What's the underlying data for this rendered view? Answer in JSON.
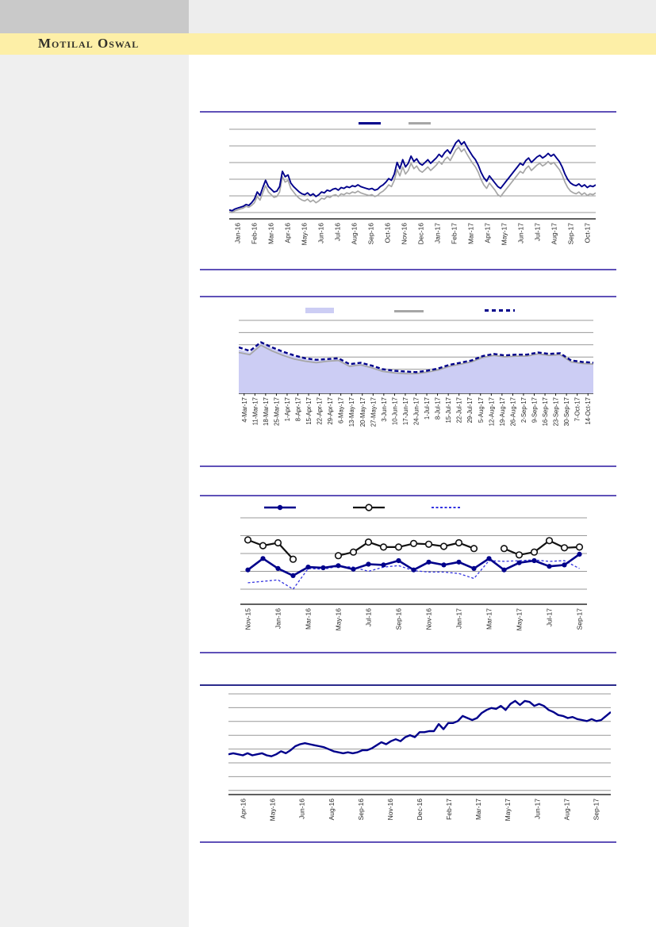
{
  "page": {
    "brand": "Motilal Oswal"
  },
  "colors": {
    "navy": "#00008b",
    "gray_line": "#a6a6a6",
    "lavender": "#cccdf4",
    "bright_blue_dash": "#3333e0",
    "black_line": "#111111",
    "rule_purple": "#5f51b8",
    "rule_navy": "#2b2b8c",
    "band_yellow": "#fdefa7",
    "topbar_gray": "#c9c9c9",
    "topbar_light": "#ededed",
    "sidebar_gray": "#efefef",
    "gridline": "#999999",
    "axis_black": "#000000",
    "tick_text": "#262626",
    "brand_text": "#32312b"
  },
  "chart_data": [
    {
      "id": "chart1-two-line-trend",
      "type": "line",
      "title": "",
      "xlabel": "",
      "ylabel": "",
      "y_axis": "unlabeled (values estimated on relative 0-100 scale of plot height)",
      "ylim": [
        0,
        100
      ],
      "grid": "horizontal",
      "legend_position": "top (two unlabeled swatches: navy line, gray line)",
      "x_labels": [
        "Jan-16",
        "Feb-16",
        "Mar-16",
        "Apr-16",
        "May-16",
        "Jun-16",
        "Jul-16",
        "Aug-16",
        "Sep-16",
        "Oct-16",
        "Nov-16",
        "Dec-16",
        "Jan-17",
        "Feb-17",
        "Mar-17",
        "Apr-17",
        "May-17",
        "Jun-17",
        "Jul-17",
        "Aug-17",
        "Sep-17",
        "Oct-17"
      ],
      "series": [
        {
          "name": "navy-line",
          "values": [
            10,
            9,
            11,
            12,
            13,
            14,
            16,
            15,
            18,
            22,
            30,
            26,
            35,
            43,
            36,
            33,
            30,
            31,
            36,
            53,
            47,
            49,
            40,
            36,
            33,
            30,
            28,
            27,
            29,
            26,
            28,
            25,
            27,
            30,
            29,
            32,
            31,
            33,
            34,
            32,
            35,
            34,
            36,
            35,
            37,
            36,
            38,
            36,
            35,
            34,
            33,
            34,
            32,
            33,
            36,
            38,
            41,
            45,
            43,
            50,
            63,
            56,
            66,
            58,
            62,
            70,
            64,
            67,
            62,
            60,
            63,
            66,
            62,
            65,
            68,
            72,
            69,
            74,
            77,
            73,
            79,
            85,
            88,
            83,
            86,
            80,
            75,
            70,
            66,
            60,
            52,
            46,
            42,
            48,
            44,
            40,
            36,
            34,
            38,
            42,
            46,
            50,
            54,
            58,
            62,
            60,
            65,
            68,
            63,
            66,
            69,
            71,
            68,
            70,
            73,
            70,
            72,
            68,
            64,
            58,
            50,
            44,
            40,
            38,
            37,
            39,
            36,
            38,
            35,
            37,
            36,
            38
          ]
        },
        {
          "name": "gray-line",
          "values": [
            8,
            7,
            9,
            10,
            11,
            12,
            14,
            13,
            15,
            18,
            25,
            21,
            29,
            37,
            30,
            27,
            24,
            25,
            30,
            47,
            41,
            43,
            34,
            30,
            26,
            23,
            21,
            20,
            22,
            19,
            21,
            18,
            20,
            23,
            22,
            25,
            24,
            26,
            27,
            25,
            28,
            27,
            29,
            28,
            30,
            29,
            31,
            29,
            28,
            27,
            26,
            27,
            25,
            26,
            29,
            31,
            34,
            38,
            36,
            43,
            55,
            48,
            58,
            50,
            54,
            62,
            56,
            59,
            54,
            52,
            55,
            58,
            54,
            57,
            60,
            64,
            61,
            66,
            69,
            65,
            71,
            77,
            80,
            75,
            78,
            72,
            67,
            62,
            58,
            52,
            44,
            38,
            34,
            40,
            36,
            32,
            27,
            25,
            29,
            33,
            37,
            41,
            45,
            49,
            53,
            51,
            56,
            59,
            54,
            57,
            60,
            62,
            59,
            61,
            64,
            61,
            63,
            59,
            55,
            49,
            41,
            35,
            31,
            29,
            28,
            30,
            27,
            29,
            26,
            28,
            27,
            29
          ]
        }
      ]
    },
    {
      "id": "chart2-weekly-area",
      "type": "area",
      "title": "",
      "xlabel": "",
      "ylabel": "",
      "y_axis": "unlabeled (values estimated on relative 0-100 scale of plot height)",
      "ylim": [
        0,
        100
      ],
      "grid": "horizontal",
      "legend_position": "top (three unlabeled swatches: lavender area, gray line, navy dashed line)",
      "x_labels": [
        "4-Mar-17",
        "11-Mar-17",
        "18-Mar-17",
        "25-Mar-17",
        "1-Apr-17",
        "8-Apr-17",
        "15-Apr-17",
        "22-Apr-17",
        "29-Apr-17",
        "6-May-17",
        "13-May-17",
        "20-May-17",
        "27-May-17",
        "3-Jun-17",
        "10-Jun-17",
        "17-Jun-17",
        "24-Jun-17",
        "1-Jul-17",
        "8-Jul-17",
        "15-Jul-17",
        "22-Jul-17",
        "29-Jul-17",
        "5-Aug-17",
        "12-Aug-17",
        "19-Aug-17",
        "26-Aug-17",
        "2-Sep-17",
        "9-Sep-17",
        "16-Sep-17",
        "23-Sep-17",
        "30-Sep-17",
        "7-Oct-17",
        "14-Oct-17"
      ],
      "series": [
        {
          "name": "lavender-area",
          "values": [
            60,
            56,
            69,
            62,
            56,
            51,
            47,
            45,
            46,
            47,
            39,
            41,
            37,
            32,
            30,
            29,
            28,
            30,
            33,
            38,
            41,
            44,
            50,
            53,
            51,
            52,
            52,
            55,
            53,
            54,
            44,
            42,
            41
          ]
        },
        {
          "name": "gray-line",
          "values": [
            56,
            53,
            66,
            58,
            52,
            47,
            44,
            42,
            44,
            45,
            37,
            39,
            35,
            30,
            28,
            27,
            27,
            29,
            32,
            37,
            40,
            43,
            49,
            52,
            50,
            51,
            51,
            54,
            52,
            53,
            43,
            41,
            40
          ]
        },
        {
          "name": "navy-dashed-line",
          "values": [
            63,
            58,
            70,
            63,
            57,
            52,
            48,
            46,
            47,
            48,
            40,
            42,
            38,
            33,
            31,
            30,
            29,
            31,
            34,
            39,
            42,
            45,
            51,
            54,
            52,
            53,
            53,
            56,
            54,
            55,
            45,
            43,
            42
          ]
        }
      ]
    },
    {
      "id": "chart3-monthly-markers",
      "type": "line",
      "title": "",
      "xlabel": "",
      "ylabel": "",
      "y_axis": "unlabeled (values estimated on relative 0-100 scale of plot height)",
      "ylim": [
        0,
        100
      ],
      "grid": "horizontal",
      "legend_position": "top (three unlabeled swatches: navy line with filled dot, black line with open dot, blue dotted line)",
      "points_per_series": 23,
      "x_labels": [
        "Nov-15",
        "Jan-16",
        "Mar-16",
        "May-16",
        "Jul-16",
        "Sep-16",
        "Nov-16",
        "Jan-17",
        "Mar-17",
        "May-17",
        "Jul-17",
        "Sep-17"
      ],
      "x_label_every_n_points": 2,
      "series": [
        {
          "name": "navy-marker-line",
          "values": [
            27,
            43,
            29,
            19,
            31,
            30,
            33,
            28,
            35,
            34,
            40,
            27,
            38,
            34,
            38,
            29,
            43,
            27,
            37,
            40,
            32,
            34,
            49
          ]
        },
        {
          "name": "black-open-marker-line",
          "values": [
            69,
            61,
            65,
            42,
            null,
            null,
            47,
            52,
            66,
            59,
            59,
            64,
            63,
            60,
            65,
            57,
            null,
            57,
            48,
            52,
            68,
            58,
            59
          ]
        },
        {
          "name": "blue-dotted-line",
          "values": [
            9,
            11,
            13,
            0,
            29,
            28,
            32,
            31,
            25,
            31,
            33,
            26,
            24,
            24,
            22,
            15,
            40,
            39,
            40,
            41,
            39,
            40,
            29
          ]
        }
      ]
    },
    {
      "id": "chart4-single-trend",
      "type": "line",
      "title": "",
      "xlabel": "",
      "ylabel": "",
      "y_axis": "unlabeled (values estimated on relative 0-100 scale of plot height)",
      "ylim": [
        0,
        100
      ],
      "grid": "horizontal",
      "legend_position": "none",
      "x_labels": [
        "Apr-16",
        "May-16",
        "Jun-16",
        "Aug-16",
        "Sep-16",
        "Nov-16",
        "Dec-16",
        "Feb-17",
        "Mar-17",
        "May-17",
        "Jun-17",
        "Aug-17",
        "Sep-17"
      ],
      "series": [
        {
          "name": "navy-trend-line",
          "values": [
            40,
            41,
            40,
            39,
            41,
            39,
            40,
            41,
            39,
            38,
            40,
            43,
            41,
            44,
            48,
            50,
            51,
            50,
            49,
            48,
            47,
            45,
            43,
            42,
            41,
            42,
            41,
            42,
            44,
            44,
            46,
            49,
            52,
            50,
            53,
            55,
            53,
            57,
            59,
            57,
            62,
            62,
            63,
            63,
            70,
            65,
            71,
            71,
            73,
            78,
            76,
            74,
            76,
            81,
            84,
            86,
            85,
            88,
            84,
            90,
            93,
            89,
            93,
            92,
            88,
            90,
            88,
            84,
            82,
            79,
            78,
            76,
            77,
            75,
            74,
            73,
            75,
            73,
            74,
            78,
            82
          ]
        }
      ]
    }
  ]
}
